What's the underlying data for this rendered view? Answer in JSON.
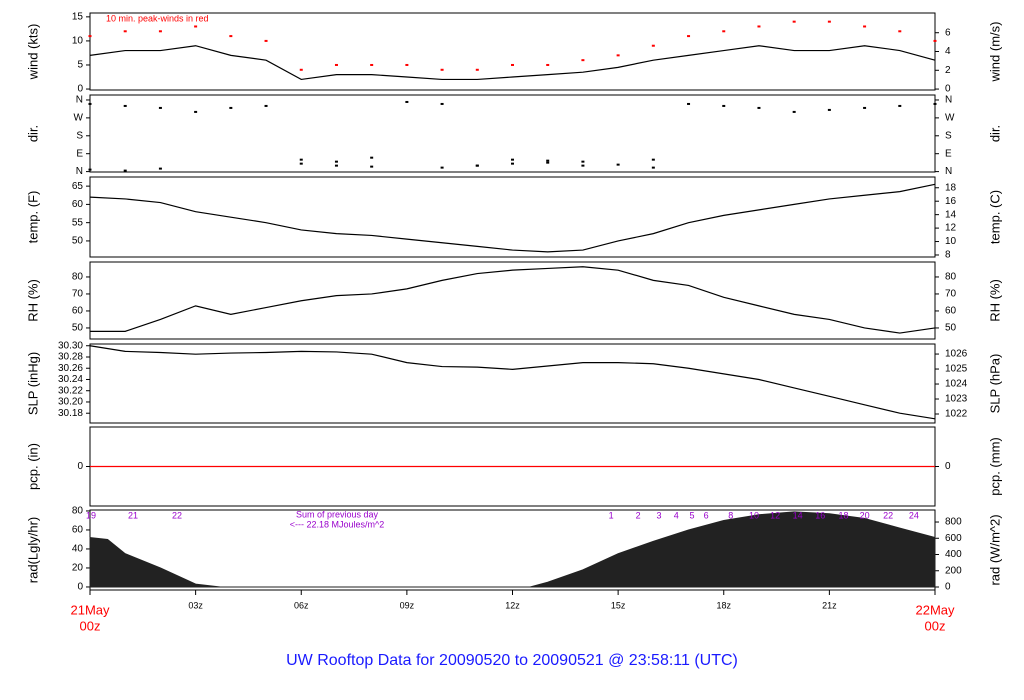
{
  "title": "UW Rooftop Data for 20090520  to  20090521 @ 23:58:11  (UTC)",
  "chart_data": [
    {
      "type": "line",
      "ylabel": "wind (kts)",
      "y2label": "wind (m/s)",
      "annotation": "10 min. peak-winds in red",
      "xlim": [
        0,
        24
      ],
      "x": [
        0,
        1,
        2,
        3,
        4,
        5,
        6,
        7,
        8,
        9,
        10,
        11,
        12,
        13,
        14,
        15,
        16,
        17,
        18,
        19,
        20,
        21,
        22,
        23,
        24
      ],
      "ylim": [
        -0.2,
        15.8
      ],
      "yticks": [
        0,
        5,
        10,
        15
      ],
      "y2lim": [
        -0.1,
        8.1
      ],
      "y2ticks": [
        0,
        2,
        4,
        6
      ],
      "series": [
        {
          "color": "#000000",
          "style": "line",
          "values": [
            7,
            8,
            8,
            9,
            7,
            6,
            2,
            3,
            3,
            2.5,
            2,
            2,
            2.5,
            3,
            3.5,
            4.5,
            6,
            7,
            8,
            9,
            8,
            8,
            9,
            8,
            6
          ]
        },
        {
          "color": "#ff0000",
          "style": "markers",
          "values": [
            11,
            12,
            12,
            13,
            11,
            10,
            4,
            5,
            5,
            5,
            4,
            4,
            5,
            5,
            6,
            7,
            9,
            11,
            12,
            13,
            14,
            14,
            13,
            12,
            10
          ]
        }
      ]
    },
    {
      "type": "scatter",
      "ylabel": "dir.",
      "y2label": "dir.",
      "xlim": [
        0,
        24
      ],
      "x": [
        0,
        1,
        2,
        3,
        4,
        5,
        6,
        7,
        8,
        9,
        10,
        11,
        12,
        13,
        14,
        15,
        16,
        17,
        18,
        19,
        20,
        21,
        22,
        23,
        24
      ],
      "ylim": [
        -2,
        385
      ],
      "yticks": [
        {
          "value": 0,
          "label": "N"
        },
        {
          "value": 90,
          "label": "E"
        },
        {
          "value": 180,
          "label": "S"
        },
        {
          "value": 270,
          "label": "W"
        },
        {
          "value": 360,
          "label": "N"
        }
      ],
      "y2lim": [
        -2,
        385
      ],
      "y2ticks": [
        {
          "value": 0,
          "label": "N"
        },
        {
          "value": 90,
          "label": "E"
        },
        {
          "value": 180,
          "label": "S"
        },
        {
          "value": 270,
          "label": "W"
        },
        {
          "value": 360,
          "label": "N"
        }
      ],
      "series": [
        {
          "color": "#000000",
          "style": "markers",
          "values": [
            340,
            330,
            320,
            300,
            320,
            330,
            40,
            30,
            25,
            350,
            340,
            30,
            40,
            45,
            30,
            35,
            20,
            340,
            330,
            320,
            300,
            310,
            320,
            330,
            340
          ]
        },
        {
          "color": "#000000",
          "style": "markers",
          "values": [
            10,
            5,
            15,
            null,
            null,
            null,
            60,
            50,
            70,
            null,
            20,
            30,
            60,
            55,
            50,
            null,
            60,
            null,
            null,
            null,
            null,
            null,
            null,
            null,
            null
          ]
        }
      ]
    },
    {
      "type": "line",
      "ylabel": "temp. (F)",
      "y2label": "temp. (C)",
      "xlim": [
        0,
        24
      ],
      "x": [
        0,
        1,
        2,
        3,
        4,
        5,
        6,
        7,
        8,
        9,
        10,
        11,
        12,
        13,
        14,
        15,
        16,
        17,
        18,
        19,
        20,
        21,
        22,
        23,
        24
      ],
      "ylim": [
        45.6,
        67.5
      ],
      "yticks": [
        50,
        55,
        60,
        65
      ],
      "y2lim": [
        7.7,
        19.6
      ],
      "y2ticks": [
        8,
        10,
        12,
        14,
        16,
        18
      ],
      "series": [
        {
          "color": "#000000",
          "style": "line",
          "values": [
            62,
            61.5,
            60.5,
            58,
            56.5,
            55,
            53,
            52,
            51.5,
            50.5,
            49.5,
            48.5,
            47.5,
            47,
            47.5,
            50,
            52,
            55,
            57,
            58.5,
            60,
            61.5,
            62.5,
            63.5,
            65.5
          ]
        }
      ]
    },
    {
      "type": "line",
      "ylabel": "RH (%)",
      "y2label": "RH (%)",
      "xlim": [
        0,
        24
      ],
      "x": [
        0,
        1,
        2,
        3,
        4,
        5,
        6,
        7,
        8,
        9,
        10,
        11,
        12,
        13,
        14,
        15,
        16,
        17,
        18,
        19,
        20,
        21,
        22,
        23,
        24
      ],
      "ylim": [
        43.5,
        88.8
      ],
      "yticks": [
        50,
        60,
        70,
        80
      ],
      "y2lim": [
        43.5,
        88.8
      ],
      "y2ticks": [
        50,
        60,
        70,
        80
      ],
      "series": [
        {
          "color": "#000000",
          "style": "line",
          "values": [
            48,
            48,
            55,
            63,
            58,
            62,
            66,
            69,
            70,
            73,
            78,
            82,
            84,
            85,
            86,
            84,
            78,
            75,
            68,
            63,
            58,
            55,
            50,
            47,
            50
          ]
        }
      ]
    },
    {
      "type": "line",
      "ylabel": "SLP (inHg)",
      "y2label": "SLP (hPa)",
      "xlim": [
        0,
        24
      ],
      "x": [
        0,
        1,
        2,
        3,
        4,
        5,
        6,
        7,
        8,
        9,
        10,
        11,
        12,
        13,
        14,
        15,
        16,
        17,
        18,
        19,
        20,
        21,
        22,
        23,
        24
      ],
      "ylim": [
        30.1626,
        30.3031
      ],
      "yticks": [
        30.18,
        {
          "value": 30.2,
          "label": "30.20"
        },
        30.22,
        30.24,
        30.26,
        30.28,
        {
          "value": 30.3,
          "label": "30.30"
        }
      ],
      "y2lim": [
        1021.4,
        1026.67
      ],
      "y2ticks": [
        1022,
        1023,
        1024,
        1025,
        1026
      ],
      "series": [
        {
          "color": "#000000",
          "style": "line",
          "values": [
            30.3,
            30.29,
            30.288,
            30.285,
            30.287,
            30.288,
            30.29,
            30.289,
            30.285,
            30.27,
            30.263,
            30.262,
            30.258,
            30.264,
            30.27,
            30.27,
            30.268,
            30.26,
            30.25,
            30.24,
            30.225,
            30.21,
            30.195,
            30.18,
            30.17
          ]
        }
      ]
    },
    {
      "type": "line",
      "ylabel": "pcp. (in)",
      "y2label": "pcp. (mm)",
      "xlim": [
        0,
        24
      ],
      "x": [
        0,
        1,
        2,
        3,
        4,
        5,
        6,
        7,
        8,
        9,
        10,
        11,
        12,
        13,
        14,
        15,
        16,
        17,
        18,
        19,
        20,
        21,
        22,
        23,
        24
      ],
      "ylim": [
        -1,
        1
      ],
      "yticks": [
        0
      ],
      "y2lim": [
        -1,
        1
      ],
      "y2ticks": [
        0
      ],
      "series": [
        {
          "color": "#ff0000",
          "style": "line",
          "values": [
            0,
            0,
            0,
            0,
            0,
            0,
            0,
            0,
            0,
            0,
            0,
            0,
            0,
            0,
            0,
            0,
            0,
            0,
            0,
            0,
            0,
            0,
            0,
            0,
            0
          ]
        }
      ]
    },
    {
      "type": "area",
      "ylabel": "rad(Lgly/hr)",
      "y2label": "rad (W/m^2)",
      "annotations": [
        "Sum of previous day",
        "<--- 22.18 MJoules/m^2"
      ],
      "markers": {
        "x": [
          0.03,
          1.22,
          2.47,
          14.8,
          15.57,
          16.16,
          16.65,
          17.1,
          17.5,
          18.2,
          18.86,
          19.46,
          20.1,
          20.74,
          21.4,
          22.0,
          22.67,
          23.4
        ],
        "labels": [
          "19",
          "21",
          "22",
          "1",
          "2",
          "3",
          "4",
          "5",
          "6",
          "8",
          "10",
          "12",
          "14",
          "16",
          "18",
          "20",
          "22",
          "24"
        ]
      },
      "xlim": [
        0,
        24
      ],
      "x": [
        0,
        0.5,
        1,
        2,
        3,
        3.7,
        4,
        6,
        8,
        10,
        12,
        12.5,
        13,
        14,
        15,
        16,
        17,
        18,
        19,
        20,
        21,
        22,
        23,
        24
      ],
      "ylim": [
        -3.2,
        81
      ],
      "yticks": [
        0,
        20,
        40,
        60,
        80
      ],
      "y2lim": [
        -37,
        948
      ],
      "y2ticks": [
        0,
        200,
        400,
        600,
        800
      ],
      "xticks": [
        {
          "value": 0,
          "label": "00z"
        },
        {
          "value": 3,
          "label": "03z"
        },
        {
          "value": 6,
          "label": "06z"
        },
        {
          "value": 9,
          "label": "09z"
        },
        {
          "value": 12,
          "label": "12z"
        },
        {
          "value": 15,
          "label": "15z"
        },
        {
          "value": 18,
          "label": "18z"
        },
        {
          "value": 21,
          "label": "21z"
        },
        {
          "value": 24,
          "label": "00z"
        }
      ],
      "xdates": [
        {
          "value": 0,
          "label": "21May"
        },
        {
          "value": 24,
          "label": "22May"
        }
      ],
      "series": [
        {
          "color": "#222222",
          "style": "area",
          "values": [
            52,
            50,
            35,
            20,
            3,
            0,
            0,
            0,
            0,
            0,
            0,
            0,
            5,
            18,
            35,
            48,
            60,
            70,
            76,
            79,
            77,
            72,
            62,
            52
          ]
        }
      ]
    }
  ]
}
